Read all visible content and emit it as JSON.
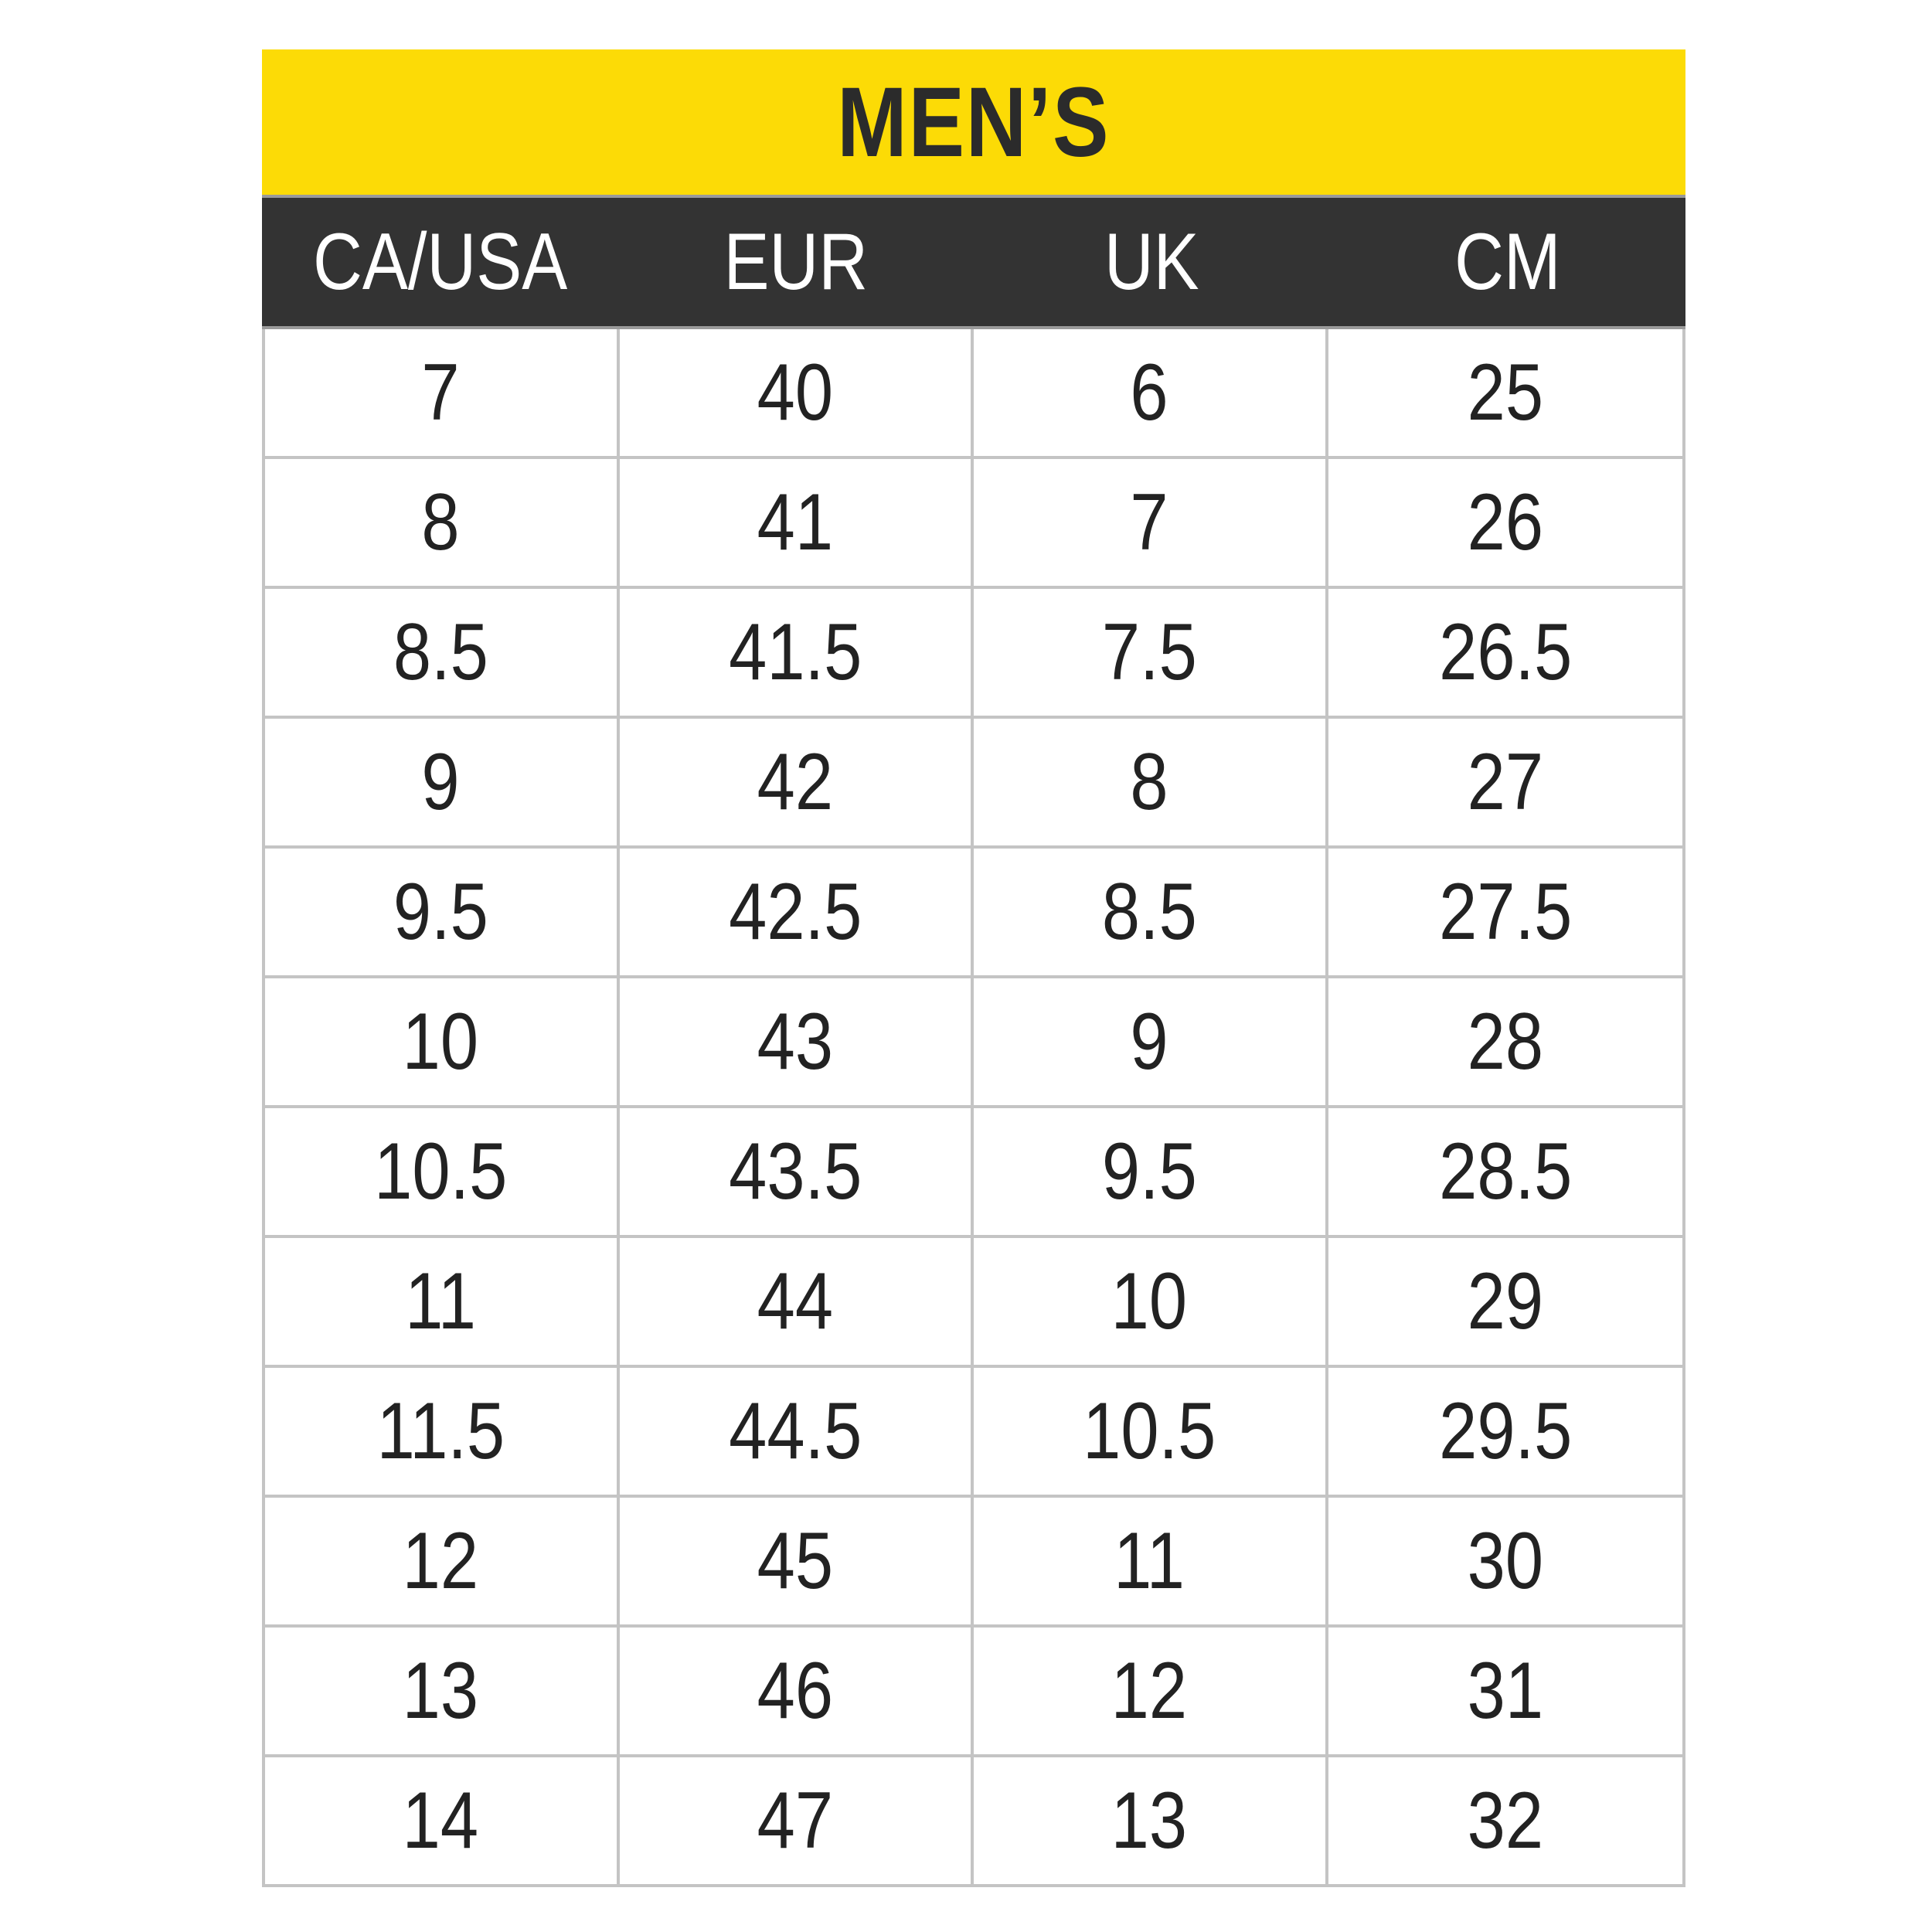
{
  "title": "MEN’S",
  "colors": {
    "title_band": "#FCDB06",
    "header": "#333333",
    "grid": "#c4c4c4"
  },
  "headers": [
    "CA/USA",
    "EUR",
    "UK",
    "CM"
  ],
  "rows": [
    [
      "7",
      "40",
      "6",
      "25"
    ],
    [
      "8",
      "41",
      "7",
      "26"
    ],
    [
      "8.5",
      "41.5",
      "7.5",
      "26.5"
    ],
    [
      "9",
      "42",
      "8",
      "27"
    ],
    [
      "9.5",
      "42.5",
      "8.5",
      "27.5"
    ],
    [
      "10",
      "43",
      "9",
      "28"
    ],
    [
      "10.5",
      "43.5",
      "9.5",
      "28.5"
    ],
    [
      "11",
      "44",
      "10",
      "29"
    ],
    [
      "11.5",
      "44.5",
      "10.5",
      "29.5"
    ],
    [
      "12",
      "45",
      "11",
      "30"
    ],
    [
      "13",
      "46",
      "12",
      "31"
    ],
    [
      "14",
      "47",
      "13",
      "32"
    ]
  ]
}
